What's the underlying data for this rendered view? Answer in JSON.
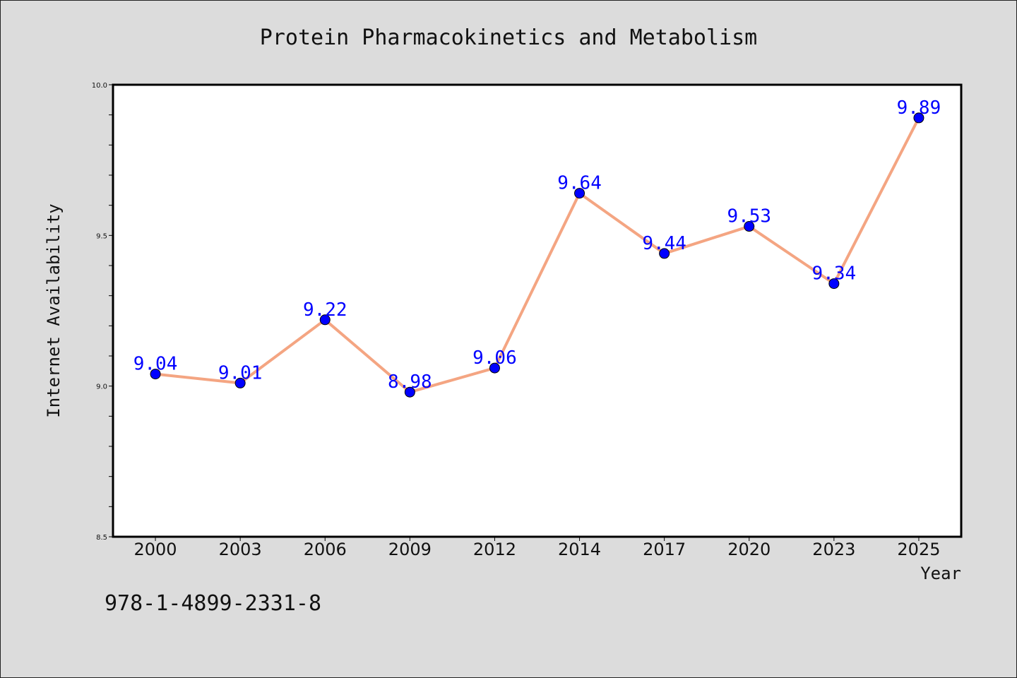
{
  "chart_data": {
    "type": "line",
    "title": "Protein Pharmacokinetics and Metabolism",
    "xlabel": "Year",
    "ylabel": "Internet Availability",
    "categories": [
      "2000",
      "2003",
      "2006",
      "2009",
      "2012",
      "2014",
      "2017",
      "2020",
      "2023",
      "2025"
    ],
    "series": [
      {
        "values": [
          9.04,
          9.01,
          9.22,
          8.98,
          9.06,
          9.64,
          9.44,
          9.53,
          9.34,
          9.89
        ],
        "data_labels": [
          "9.04",
          "9.01",
          "9.22",
          "8.98",
          "9.06",
          "9.64",
          "9.44",
          "9.53",
          "9.34",
          "9.89"
        ]
      }
    ],
    "ylim": [
      8.5,
      10.0
    ],
    "y_ticks": [
      "8.5",
      "9.0",
      "9.5",
      "10.0"
    ],
    "grid": false,
    "line_color": "#f4a582",
    "marker_color": "#0000ff",
    "label_color": "#0000ff"
  },
  "footer": {
    "isbn": "978-1-4899-2331-8"
  }
}
